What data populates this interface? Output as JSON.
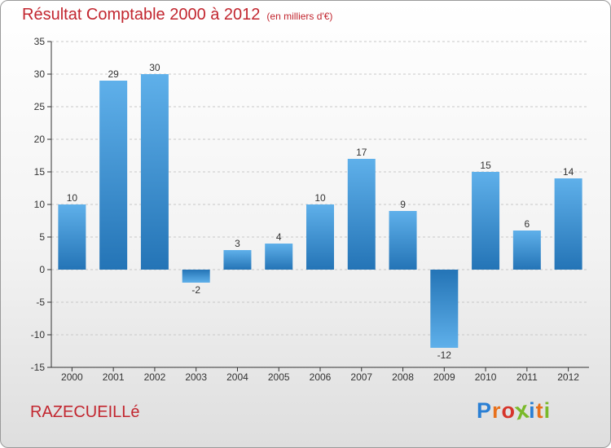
{
  "header": {
    "title": "Résultat Comptable 2000 à 2012",
    "subtitle": "(en milliers d'€)"
  },
  "footer": {
    "place": "RAZECUEILLé",
    "brand": "Proxiti"
  },
  "colors": {
    "title": "#c2262f",
    "bar_light": "#5fb0ea",
    "bar_dark": "#2474b6",
    "axis": "#333333",
    "grid": "#c8c8c8"
  },
  "chart_data": {
    "type": "bar",
    "title": "Résultat Comptable 2000 à 2012",
    "subtitle": "(en milliers d'€)",
    "xlabel": "",
    "ylabel": "",
    "categories": [
      "2000",
      "2001",
      "2002",
      "2003",
      "2004",
      "2005",
      "2006",
      "2007",
      "2008",
      "2009",
      "2010",
      "2011",
      "2012"
    ],
    "values": [
      10,
      29,
      30,
      -2,
      3,
      4,
      10,
      17,
      9,
      -12,
      15,
      6,
      14
    ],
    "data_labels": [
      "10",
      "29",
      "30",
      "-2",
      "3",
      "4",
      "10",
      "17",
      "9",
      "-12",
      "15",
      "6",
      "14"
    ],
    "ylim": [
      -15,
      35
    ],
    "yticks": [
      -15,
      -10,
      -5,
      0,
      5,
      10,
      15,
      20,
      25,
      30,
      35
    ],
    "ytick_labels": [
      "-15",
      "-10",
      "-5",
      "0",
      "5",
      "10",
      "15",
      "20",
      "25",
      "30",
      "35"
    ],
    "grid": "horizontal dashed",
    "legend": "none"
  }
}
